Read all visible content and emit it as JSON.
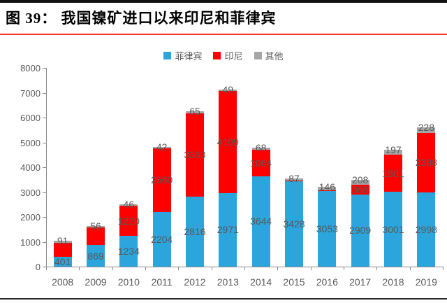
{
  "figure": {
    "title": "图 39： 我国镍矿进口以来印尼和菲律宾",
    "top_border_color": "#111111",
    "title_rule_color": "#EF3B24",
    "bottom_border_color": "#262626"
  },
  "legend": [
    {
      "label": "菲律宾",
      "color": "#2BA5DC"
    },
    {
      "label": "印尼",
      "color": "#FE0000"
    },
    {
      "label": "其他",
      "color": "#A6A6A6"
    }
  ],
  "chart_data": {
    "type": "bar",
    "stacked": true,
    "title": "图 39： 我国镍矿进口以来印尼和菲律宾",
    "xlabel": "",
    "ylabel": "",
    "grid": false,
    "legend_position": "top",
    "ylim": [
      0,
      8000
    ],
    "ytick_step": 1000,
    "yticks": [
      "0",
      "1000",
      "2000",
      "3000",
      "4000",
      "5000",
      "6000",
      "7000",
      "8000"
    ],
    "categories": [
      "2008",
      "2009",
      "2010",
      "2011",
      "2012",
      "2013",
      "2014",
      "2015",
      "2016",
      "2017",
      "2018",
      "2019"
    ],
    "series": [
      {
        "name": "菲律宾",
        "color": "#2BA5DC",
        "values": [
          401,
          869,
          1234,
          2204,
          2816,
          2971,
          3644,
          3428,
          3053,
          2909,
          3001,
          2998
        ],
        "labels": [
          "401",
          "869",
          "1234",
          "2204",
          "2816",
          "2971",
          "3644",
          "3428",
          "3053",
          "2909",
          "3001",
          "2998"
        ]
      },
      {
        "name": "印尼",
        "color": "#FE0000",
        "values": [
          550,
          700,
          1220,
          2560,
          3363,
          4109,
          1064,
          30,
          20,
          386,
          1501,
          2388
        ],
        "labels": [
          null,
          null,
          "1220",
          "2560",
          "3363",
          "4109",
          "1064",
          null,
          null,
          "386",
          "1501",
          "2388"
        ]
      },
      {
        "name": "其他",
        "color": "#A6A6A6",
        "values": [
          91,
          56,
          46,
          42,
          65,
          49,
          68,
          87,
          146,
          208,
          197,
          228
        ],
        "labels": [
          "91",
          "56",
          "46",
          "42",
          "65",
          "49",
          "68",
          "87",
          "146",
          "208",
          "197",
          "228"
        ]
      }
    ],
    "label_color": "#595959",
    "axis_color": "#898989"
  }
}
